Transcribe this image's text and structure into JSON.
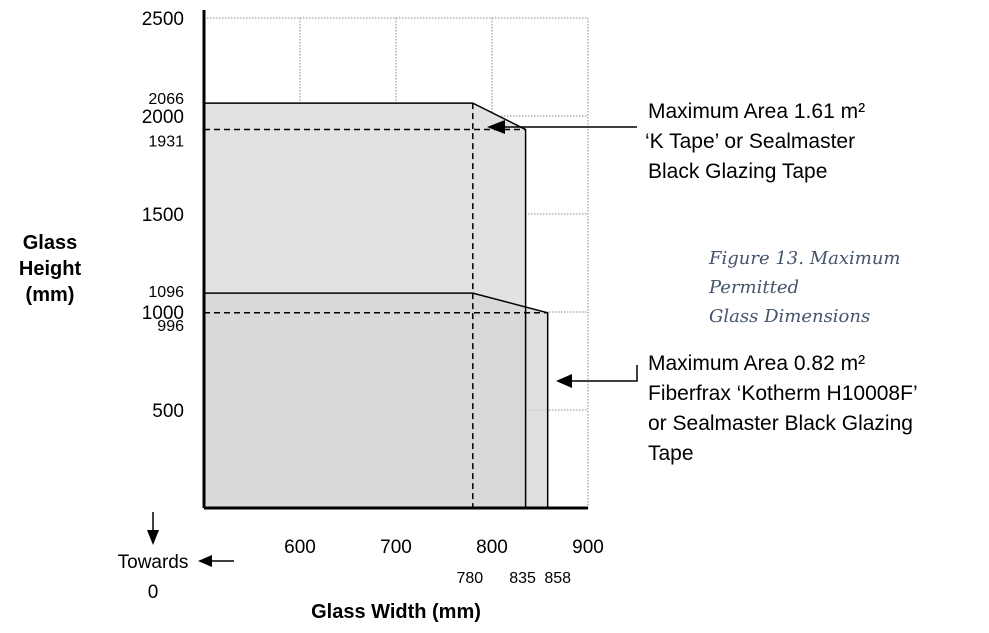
{
  "chart_data": {
    "type": "area",
    "xlabel": "Glass Width (mm)",
    "ylabel_lines": [
      "Glass",
      "Height",
      "(mm)"
    ],
    "xlim": [
      500,
      900
    ],
    "ylim": [
      0,
      2500
    ],
    "x_ticks": [
      600,
      700,
      800,
      900
    ],
    "y_ticks": [
      500,
      1000,
      1500,
      2000,
      2500
    ],
    "marked_x": [
      780,
      835,
      858
    ],
    "marked_y": [
      996,
      1096,
      1931,
      2066
    ],
    "grid": true,
    "series": [
      {
        "x": [
          500,
          780,
          835,
          835
        ],
        "y": [
          2066,
          2066,
          1931,
          0
        ],
        "label_lines": [
          "Maximum Area 1.61 m²",
          "‘K Tape’ or Sealmaster",
          "Black Glazing Tape"
        ],
        "color": "#e2e2e2"
      },
      {
        "x": [
          500,
          780,
          858,
          858
        ],
        "y": [
          1096,
          1096,
          996,
          0
        ],
        "label_lines": [
          "Maximum Area 0.82 m²",
          "Fiberfrax ‘Kotherm H10008F’",
          "or Sealmaster Black Glazing",
          "Tape"
        ],
        "color": "#d5d5d5"
      }
    ],
    "towards_zero_lines": [
      "Towards",
      "0"
    ]
  },
  "caption_lines": [
    "Figure 13. Maximum Permitted",
    "Glass Dimensions"
  ]
}
